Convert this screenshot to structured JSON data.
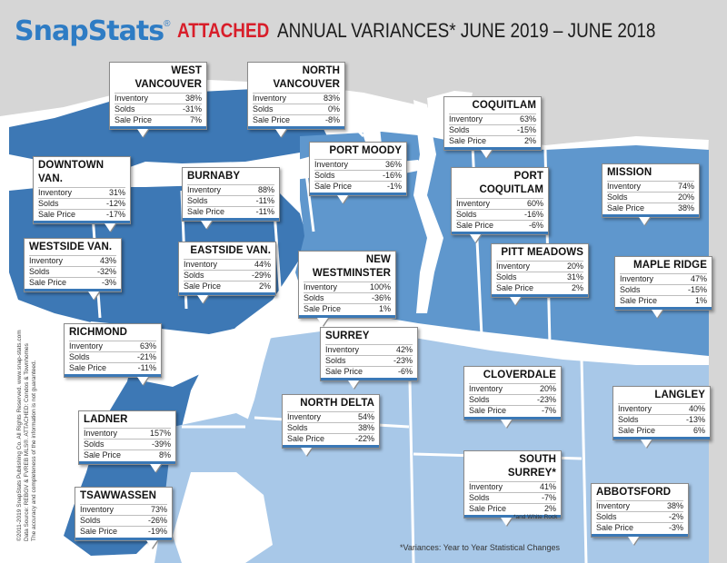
{
  "header": {
    "logo_snap": "Snap",
    "logo_stats": "Stats",
    "logo_reg": "®",
    "title_attached": "ATTACHED",
    "title_rest": "ANNUAL VARIANCES*  JUNE 2019 – JUNE 2018"
  },
  "row_labels": {
    "inventory": "Inventory",
    "solds": "Solds",
    "sale_price": "Sale Price"
  },
  "regions": [
    {
      "id": "west-vancouver",
      "name": "WEST VANCOUVER",
      "inventory": "38%",
      "solds": "-31%",
      "sale_price": "7%"
    },
    {
      "id": "north-vancouver",
      "name": "NORTH VANCOUVER",
      "inventory": "83%",
      "solds": "0%",
      "sale_price": "-8%"
    },
    {
      "id": "coquitlam",
      "name": "COQUITLAM",
      "inventory": "63%",
      "solds": "-15%",
      "sale_price": "2%"
    },
    {
      "id": "port-moody",
      "name": "PORT MOODY",
      "inventory": "36%",
      "solds": "-16%",
      "sale_price": "-1%"
    },
    {
      "id": "downtown-van",
      "name": "DOWNTOWN VAN.",
      "inventory": "31%",
      "solds": "-12%",
      "sale_price": "-17%"
    },
    {
      "id": "burnaby",
      "name": "BURNABY",
      "inventory": "88%",
      "solds": "-11%",
      "sale_price": "-11%"
    },
    {
      "id": "port-coquitlam",
      "name": "PORT COQUITLAM",
      "inventory": "60%",
      "solds": "-16%",
      "sale_price": "-6%"
    },
    {
      "id": "mission",
      "name": "MISSION",
      "inventory": "74%",
      "solds": "20%",
      "sale_price": "38%"
    },
    {
      "id": "westside-van",
      "name": "WESTSIDE VAN.",
      "inventory": "43%",
      "solds": "-32%",
      "sale_price": "-3%"
    },
    {
      "id": "eastside-van",
      "name": "EASTSIDE VAN.",
      "inventory": "44%",
      "solds": "-29%",
      "sale_price": "2%"
    },
    {
      "id": "new-westminster",
      "name": "NEW WESTMINSTER",
      "inventory": "100%",
      "solds": "-36%",
      "sale_price": "1%"
    },
    {
      "id": "pitt-meadows",
      "name": "PITT MEADOWS",
      "inventory": "20%",
      "solds": "31%",
      "sale_price": "2%"
    },
    {
      "id": "maple-ridge",
      "name": "MAPLE RIDGE",
      "inventory": "47%",
      "solds": "-15%",
      "sale_price": "1%"
    },
    {
      "id": "richmond",
      "name": "RICHMOND",
      "inventory": "63%",
      "solds": "-21%",
      "sale_price": "-11%"
    },
    {
      "id": "surrey",
      "name": "SURREY",
      "inventory": "42%",
      "solds": "-23%",
      "sale_price": "-6%"
    },
    {
      "id": "cloverdale",
      "name": "CLOVERDALE",
      "inventory": "20%",
      "solds": "-23%",
      "sale_price": "-7%"
    },
    {
      "id": "langley",
      "name": "LANGLEY",
      "inventory": "40%",
      "solds": "-13%",
      "sale_price": "6%"
    },
    {
      "id": "north-delta",
      "name": "NORTH DELTA",
      "inventory": "54%",
      "solds": "38%",
      "sale_price": "-22%"
    },
    {
      "id": "ladner",
      "name": "LADNER",
      "inventory": "157%",
      "solds": "-39%",
      "sale_price": "8%"
    },
    {
      "id": "south-surrey",
      "name": "SOUTH SURREY*",
      "inventory": "41%",
      "solds": "-7%",
      "sale_price": "2%"
    },
    {
      "id": "tsawwassen",
      "name": "TSAWWASSEN",
      "inventory": "73%",
      "solds": "-26%",
      "sale_price": "-19%"
    },
    {
      "id": "abbotsford",
      "name": "ABBOTSFORD",
      "inventory": "38%",
      "solds": "-2%",
      "sale_price": "-3%"
    }
  ],
  "notes": {
    "white_rock": "*and White Rock",
    "variances": "*Variances: Year to Year Statistical Changes",
    "copyright": "©2011-2019 SnapStats Publishing Co. All Rights Reserved. www.snap-stats.com",
    "source": "Data Source: REBGV & FVREB MLS®. ATTACHED: Condos & Townhomes",
    "disclaimer": "The accuracy and completeness of the information is not guaranteed."
  },
  "colors": {
    "dark_blue": "#3d78b5",
    "mid_blue": "#5f97cd",
    "light_blue": "#a8c8e8",
    "grey_land": "#d4d4d4",
    "water": "#ffffff",
    "accent_red": "#d81e2a",
    "brand_blue": "#2e7cc4"
  }
}
